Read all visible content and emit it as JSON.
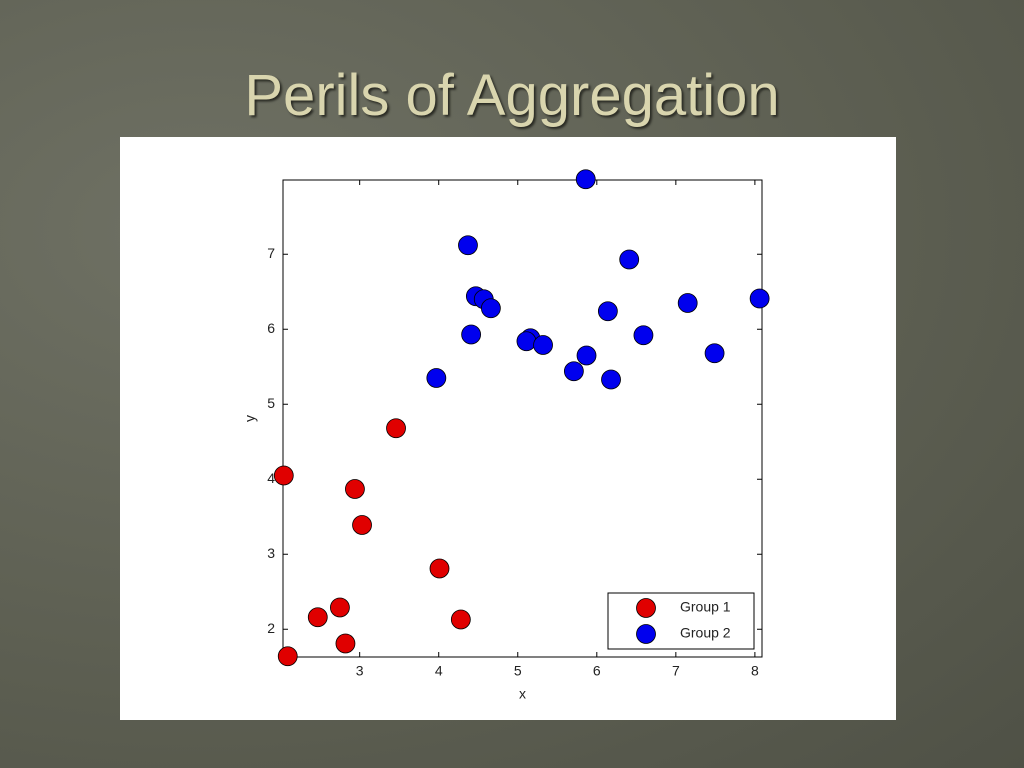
{
  "chart_data": {
    "type": "scatter",
    "title": "Perils of Aggregation",
    "x_label": "x",
    "y_label": "y",
    "xlim": [
      2.03,
      8.09
    ],
    "ylim": [
      1.63,
      7.99
    ],
    "xticks": [
      3,
      4,
      5,
      6,
      7,
      8
    ],
    "yticks": [
      2,
      3,
      4,
      5,
      6,
      7
    ],
    "legend": "lower right",
    "series": [
      {
        "name": "Group 1",
        "color": "#e00000",
        "x": [
          2.04,
          2.09,
          2.47,
          2.75,
          2.82,
          2.94,
          3.03,
          3.46,
          4.01,
          4.28
        ],
        "values": [
          4.05,
          1.64,
          2.16,
          2.29,
          1.81,
          3.87,
          3.39,
          4.68,
          2.81,
          2.13
        ]
      },
      {
        "name": "Group 2",
        "color": "#0000ee",
        "x": [
          5.86,
          4.37,
          6.41,
          4.47,
          4.57,
          4.66,
          8.06,
          7.15,
          6.14,
          4.41,
          6.59,
          5.16,
          5.11,
          5.32,
          5.87,
          7.49,
          5.71,
          6.18,
          3.97
        ],
        "values": [
          8.0,
          7.12,
          6.93,
          6.44,
          6.4,
          6.28,
          6.41,
          6.35,
          6.24,
          5.93,
          5.92,
          5.88,
          5.84,
          5.79,
          5.65,
          5.68,
          5.44,
          5.33,
          5.35
        ]
      }
    ]
  }
}
